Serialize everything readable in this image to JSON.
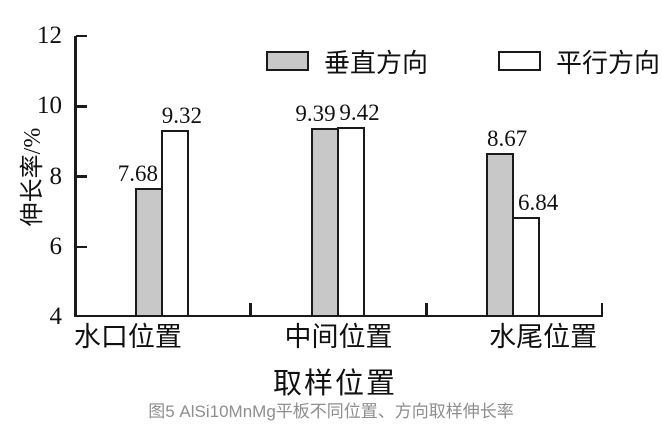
{
  "chart_data": {
    "type": "bar",
    "title": "",
    "categories": [
      "水口位置",
      "中间位置",
      "水尾位置"
    ],
    "series": [
      {
        "name": "垂直方向",
        "fill": "#c8c8c8",
        "values": [
          7.68,
          9.39,
          8.67
        ]
      },
      {
        "name": "平行方向",
        "fill": "#ffffff",
        "values": [
          9.32,
          9.42,
          6.84
        ]
      }
    ],
    "xlabel": "取样位置",
    "ylabel": "伸长率/%",
    "ylim": [
      4,
      12
    ],
    "yticks": [
      12,
      10,
      8,
      6,
      4
    ],
    "grid": false,
    "legend_position": "top-inside",
    "bar_border_color": "#1a1a1a",
    "layout_hints": {
      "value_label_dx": [
        [
          -11,
          -9,
          7
        ],
        [
          7,
          9,
          12
        ]
      ],
      "category_label_dx": [
        -35,
        0,
        29
      ]
    }
  },
  "caption": {
    "text": "图5 AlSi10MnMg平板不同位置、方向取样伸长率",
    "color": "#8e8e8e"
  }
}
